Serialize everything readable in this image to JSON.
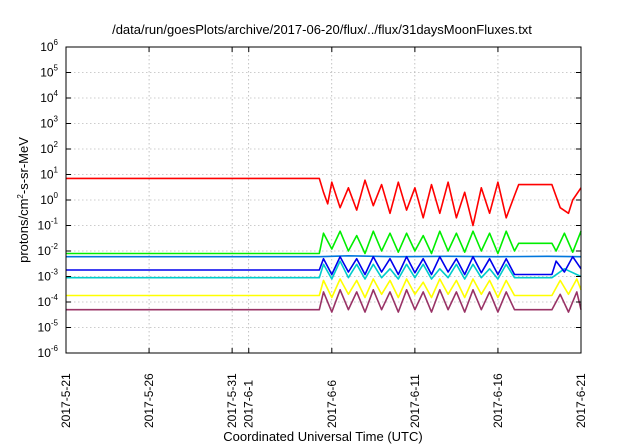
{
  "chart_data": {
    "type": "line",
    "title": "/data/run/goesPlots/archive/2017-06-20/flux/../flux/31daysMoonFluxes.txt",
    "xlabel": "Coordinated Universal Time (UTC)",
    "ylabel": {
      "prefix": "protons/cm",
      "exponent": "2",
      "suffix": "-s-sr-MeV"
    },
    "x_scale": "time",
    "x_range": [
      "2017-05-21",
      "2017-06-21"
    ],
    "x_ticks": [
      "2017-5-21",
      "2017-5-26",
      "2017-5-31",
      "2017-6-1",
      "2017-6-6",
      "2017-6-11",
      "2017-6-16",
      "2017-6-21"
    ],
    "x_tick_dates": [
      "2017-05-21",
      "2017-05-26",
      "2017-05-31",
      "2017-06-01",
      "2017-06-06",
      "2017-06-11",
      "2017-06-16",
      "2017-06-21"
    ],
    "y_scale": "log",
    "y_range": [
      1e-06,
      1000000.0
    ],
    "y_ticks": [
      {
        "base": "10",
        "exp": "6"
      },
      {
        "base": "10",
        "exp": "5"
      },
      {
        "base": "10",
        "exp": "4"
      },
      {
        "base": "10",
        "exp": "3"
      },
      {
        "base": "10",
        "exp": "2"
      },
      {
        "base": "10",
        "exp": "1"
      },
      {
        "base": "10",
        "exp": "0"
      },
      {
        "base": "10",
        "exp": "-1"
      },
      {
        "base": "10",
        "exp": "-2"
      },
      {
        "base": "10",
        "exp": "-3"
      },
      {
        "base": "10",
        "exp": "-4"
      },
      {
        "base": "10",
        "exp": "-5"
      },
      {
        "base": "10",
        "exp": "-6"
      }
    ],
    "y_tick_values": [
      1000000.0,
      100000.0,
      10000.0,
      1000.0,
      100.0,
      10.0,
      1.0,
      0.1,
      0.01,
      0.001,
      0.0001,
      1e-05,
      1e-06
    ],
    "grid": true,
    "legend": "none",
    "series": [
      {
        "color": "#ff0000",
        "points": [
          [
            "2017-05-21 00:00",
            7
          ],
          [
            "2017-06-05 06:00",
            7
          ],
          [
            "2017-06-05 12:00",
            2
          ],
          [
            "2017-06-05 18:00",
            0.7
          ],
          [
            "2017-06-06 00:00",
            5
          ],
          [
            "2017-06-06 12:00",
            0.5
          ],
          [
            "2017-06-07 00:00",
            3
          ],
          [
            "2017-06-07 12:00",
            0.4
          ],
          [
            "2017-06-08 00:00",
            6
          ],
          [
            "2017-06-08 12:00",
            0.6
          ],
          [
            "2017-06-09 00:00",
            4
          ],
          [
            "2017-06-09 12:00",
            0.3
          ],
          [
            "2017-06-10 00:00",
            5
          ],
          [
            "2017-06-10 12:00",
            0.4
          ],
          [
            "2017-06-11 00:00",
            3
          ],
          [
            "2017-06-11 12:00",
            0.2
          ],
          [
            "2017-06-12 00:00",
            4
          ],
          [
            "2017-06-12 12:00",
            0.3
          ],
          [
            "2017-06-13 00:00",
            5
          ],
          [
            "2017-06-13 12:00",
            0.2
          ],
          [
            "2017-06-14 00:00",
            2
          ],
          [
            "2017-06-14 12:00",
            0.1
          ],
          [
            "2017-06-15 00:00",
            3
          ],
          [
            "2017-06-15 12:00",
            0.3
          ],
          [
            "2017-06-16 00:00",
            5
          ],
          [
            "2017-06-16 12:00",
            0.2
          ],
          [
            "2017-06-17 00:00",
            1.5
          ],
          [
            "2017-06-17 06:00",
            4
          ],
          [
            "2017-06-19 06:00",
            4
          ],
          [
            "2017-06-19 18:00",
            0.5
          ],
          [
            "2017-06-20 06:00",
            0.3
          ],
          [
            "2017-06-20 12:00",
            1
          ],
          [
            "2017-06-21 00:00",
            3
          ]
        ]
      },
      {
        "color": "#00ee00",
        "points": [
          [
            "2017-05-21 00:00",
            0.008
          ],
          [
            "2017-06-05 06:00",
            0.008
          ],
          [
            "2017-06-05 12:00",
            0.05
          ],
          [
            "2017-06-06 00:00",
            0.012
          ],
          [
            "2017-06-06 12:00",
            0.06
          ],
          [
            "2017-06-07 00:00",
            0.01
          ],
          [
            "2017-06-07 12:00",
            0.04
          ],
          [
            "2017-06-08 00:00",
            0.008
          ],
          [
            "2017-06-08 12:00",
            0.06
          ],
          [
            "2017-06-09 00:00",
            0.01
          ],
          [
            "2017-06-09 12:00",
            0.05
          ],
          [
            "2017-06-10 00:00",
            0.009
          ],
          [
            "2017-06-10 12:00",
            0.05
          ],
          [
            "2017-06-11 00:00",
            0.01
          ],
          [
            "2017-06-11 12:00",
            0.04
          ],
          [
            "2017-06-12 00:00",
            0.008
          ],
          [
            "2017-06-12 12:00",
            0.06
          ],
          [
            "2017-06-13 00:00",
            0.01
          ],
          [
            "2017-06-13 12:00",
            0.05
          ],
          [
            "2017-06-14 00:00",
            0.009
          ],
          [
            "2017-06-14 12:00",
            0.06
          ],
          [
            "2017-06-15 00:00",
            0.01
          ],
          [
            "2017-06-15 12:00",
            0.05
          ],
          [
            "2017-06-16 00:00",
            0.008
          ],
          [
            "2017-06-16 12:00",
            0.06
          ],
          [
            "2017-06-17 00:00",
            0.01
          ],
          [
            "2017-06-17 06:00",
            0.02
          ],
          [
            "2017-06-19 06:00",
            0.02
          ],
          [
            "2017-06-19 12:00",
            0.01
          ],
          [
            "2017-06-20 00:00",
            0.05
          ],
          [
            "2017-06-20 12:00",
            0.009
          ],
          [
            "2017-06-21 00:00",
            0.06
          ]
        ]
      },
      {
        "color": "#0077dd",
        "points": [
          [
            "2017-05-21 00:00",
            0.006
          ],
          [
            "2017-06-05 06:00",
            0.006
          ],
          [
            "2017-06-07 00:00",
            0.0065
          ],
          [
            "2017-06-10 00:00",
            0.006
          ],
          [
            "2017-06-13 00:00",
            0.0062
          ],
          [
            "2017-06-16 00:00",
            0.006
          ],
          [
            "2017-06-19 00:00",
            0.0062
          ],
          [
            "2017-06-21 00:00",
            0.006
          ]
        ]
      },
      {
        "color": "#00cccc",
        "points": [
          [
            "2017-05-21 00:00",
            0.0009
          ],
          [
            "2017-06-05 06:00",
            0.0009
          ],
          [
            "2017-06-05 12:00",
            0.003
          ],
          [
            "2017-06-06 00:00",
            0.0008
          ],
          [
            "2017-06-06 12:00",
            0.004
          ],
          [
            "2017-06-07 00:00",
            0.0009
          ],
          [
            "2017-06-07 12:00",
            0.003
          ],
          [
            "2017-06-08 00:00",
            0.0008
          ],
          [
            "2017-06-08 12:00",
            0.003
          ],
          [
            "2017-06-09 00:00",
            0.0009
          ],
          [
            "2017-06-09 12:00",
            0.002
          ],
          [
            "2017-06-10 00:00",
            0.0008
          ],
          [
            "2017-06-10 12:00",
            0.003
          ],
          [
            "2017-06-11 00:00",
            0.0009
          ],
          [
            "2017-06-11 12:00",
            0.003
          ],
          [
            "2017-06-12 00:00",
            0.0008
          ],
          [
            "2017-06-12 12:00",
            0.002
          ],
          [
            "2017-06-13 00:00",
            0.0009
          ],
          [
            "2017-06-13 12:00",
            0.003
          ],
          [
            "2017-06-14 00:00",
            0.0008
          ],
          [
            "2017-06-14 12:00",
            0.003
          ],
          [
            "2017-06-15 00:00",
            0.0009
          ],
          [
            "2017-06-15 12:00",
            0.002
          ],
          [
            "2017-06-16 00:00",
            0.0008
          ],
          [
            "2017-06-16 12:00",
            0.003
          ],
          [
            "2017-06-17 00:00",
            0.0009
          ],
          [
            "2017-06-19 06:00",
            0.0009
          ],
          [
            "2017-06-20 00:00",
            0.002
          ],
          [
            "2017-06-21 00:00",
            0.001
          ]
        ]
      },
      {
        "color": "#0000ee",
        "points": [
          [
            "2017-05-21 00:00",
            0.0018
          ],
          [
            "2017-06-05 06:00",
            0.0018
          ],
          [
            "2017-06-05 12:00",
            0.005
          ],
          [
            "2017-06-06 00:00",
            0.0012
          ],
          [
            "2017-06-06 12:00",
            0.006
          ],
          [
            "2017-06-07 00:00",
            0.0015
          ],
          [
            "2017-06-07 12:00",
            0.005
          ],
          [
            "2017-06-08 00:00",
            0.0012
          ],
          [
            "2017-06-08 12:00",
            0.006
          ],
          [
            "2017-06-09 00:00",
            0.0015
          ],
          [
            "2017-06-09 12:00",
            0.005
          ],
          [
            "2017-06-10 00:00",
            0.0012
          ],
          [
            "2017-06-10 12:00",
            0.006
          ],
          [
            "2017-06-11 00:00",
            0.0014
          ],
          [
            "2017-06-11 12:00",
            0.005
          ],
          [
            "2017-06-12 00:00",
            0.0012
          ],
          [
            "2017-06-12 12:00",
            0.006
          ],
          [
            "2017-06-13 00:00",
            0.0015
          ],
          [
            "2017-06-13 12:00",
            0.005
          ],
          [
            "2017-06-14 00:00",
            0.0012
          ],
          [
            "2017-06-14 12:00",
            0.006
          ],
          [
            "2017-06-15 00:00",
            0.0014
          ],
          [
            "2017-06-15 12:00",
            0.005
          ],
          [
            "2017-06-16 00:00",
            0.0012
          ],
          [
            "2017-06-16 12:00",
            0.005
          ],
          [
            "2017-06-17 00:00",
            0.0012
          ],
          [
            "2017-06-19 06:00",
            0.0012
          ],
          [
            "2017-06-19 12:00",
            0.004
          ],
          [
            "2017-06-20 00:00",
            0.0015
          ],
          [
            "2017-06-20 12:00",
            0.006
          ],
          [
            "2017-06-21 00:00",
            0.002
          ]
        ]
      },
      {
        "color": "#ffff00",
        "points": [
          [
            "2017-05-21 00:00",
            0.00018
          ],
          [
            "2017-06-05 06:00",
            0.00018
          ],
          [
            "2017-06-05 12:00",
            0.0007
          ],
          [
            "2017-06-06 00:00",
            0.00015
          ],
          [
            "2017-06-06 12:00",
            0.0008
          ],
          [
            "2017-06-07 00:00",
            0.0002
          ],
          [
            "2017-06-07 12:00",
            0.0007
          ],
          [
            "2017-06-08 00:00",
            0.00015
          ],
          [
            "2017-06-08 12:00",
            0.0008
          ],
          [
            "2017-06-09 00:00",
            0.0002
          ],
          [
            "2017-06-09 12:00",
            0.0007
          ],
          [
            "2017-06-10 00:00",
            0.00015
          ],
          [
            "2017-06-10 12:00",
            0.0008
          ],
          [
            "2017-06-11 00:00",
            0.0002
          ],
          [
            "2017-06-11 12:00",
            0.0006
          ],
          [
            "2017-06-12 00:00",
            0.00015
          ],
          [
            "2017-06-12 12:00",
            0.0008
          ],
          [
            "2017-06-13 00:00",
            0.0002
          ],
          [
            "2017-06-13 12:00",
            0.0007
          ],
          [
            "2017-06-14 00:00",
            0.00015
          ],
          [
            "2017-06-14 12:00",
            0.0008
          ],
          [
            "2017-06-15 00:00",
            0.0002
          ],
          [
            "2017-06-15 12:00",
            0.0007
          ],
          [
            "2017-06-16 00:00",
            0.00015
          ],
          [
            "2017-06-16 12:00",
            0.0007
          ],
          [
            "2017-06-17 00:00",
            0.00018
          ],
          [
            "2017-06-19 06:00",
            0.00018
          ],
          [
            "2017-06-19 18:00",
            0.0007
          ],
          [
            "2017-06-20 06:00",
            0.0002
          ],
          [
            "2017-06-20 18:00",
            0.0008
          ],
          [
            "2017-06-21 00:00",
            0.0003
          ]
        ]
      },
      {
        "color": "#993366",
        "points": [
          [
            "2017-05-21 00:00",
            5e-05
          ],
          [
            "2017-06-05 06:00",
            5e-05
          ],
          [
            "2017-06-05 12:00",
            0.00025
          ],
          [
            "2017-06-06 00:00",
            4e-05
          ],
          [
            "2017-06-06 12:00",
            0.0003
          ],
          [
            "2017-06-07 00:00",
            5e-05
          ],
          [
            "2017-06-07 12:00",
            0.00025
          ],
          [
            "2017-06-08 00:00",
            4e-05
          ],
          [
            "2017-06-08 12:00",
            0.0003
          ],
          [
            "2017-06-09 00:00",
            5e-05
          ],
          [
            "2017-06-09 12:00",
            0.00025
          ],
          [
            "2017-06-10 00:00",
            4e-05
          ],
          [
            "2017-06-10 12:00",
            0.0003
          ],
          [
            "2017-06-11 00:00",
            5e-05
          ],
          [
            "2017-06-11 12:00",
            0.00025
          ],
          [
            "2017-06-12 00:00",
            4e-05
          ],
          [
            "2017-06-12 12:00",
            0.0003
          ],
          [
            "2017-06-13 00:00",
            5e-05
          ],
          [
            "2017-06-13 12:00",
            0.00025
          ],
          [
            "2017-06-14 00:00",
            4e-05
          ],
          [
            "2017-06-14 12:00",
            0.0003
          ],
          [
            "2017-06-15 00:00",
            5e-05
          ],
          [
            "2017-06-15 12:00",
            0.00025
          ],
          [
            "2017-06-16 00:00",
            4e-05
          ],
          [
            "2017-06-16 12:00",
            0.00025
          ],
          [
            "2017-06-17 00:00",
            5e-05
          ],
          [
            "2017-06-19 06:00",
            5e-05
          ],
          [
            "2017-06-19 18:00",
            0.0002
          ],
          [
            "2017-06-20 06:00",
            4e-05
          ],
          [
            "2017-06-20 18:00",
            0.00025
          ],
          [
            "2017-06-21 00:00",
            5e-05
          ]
        ]
      }
    ]
  }
}
